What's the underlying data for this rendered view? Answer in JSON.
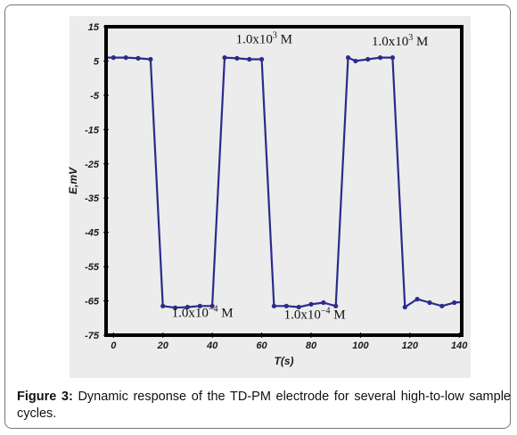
{
  "caption": {
    "label": "Figure 3:",
    "text": " Dynamic response of the TD-PM electrode for several high-to-low sample cycles."
  },
  "chart_data": {
    "type": "line",
    "xlabel": "T(s)",
    "ylabel": "E,mV",
    "xlim": [
      -3,
      141
    ],
    "ylim": [
      -75,
      15
    ],
    "xticks": [
      0,
      20,
      40,
      60,
      80,
      100,
      120,
      140
    ],
    "yticks": [
      15,
      5,
      -5,
      -15,
      -25,
      -35,
      -45,
      -55,
      -65,
      -75
    ],
    "grid": false,
    "line_color": "#2b2b8c",
    "series": [
      {
        "x": [
          -4,
          0,
          5,
          10,
          15,
          20,
          25,
          30,
          35,
          40,
          45,
          50,
          55,
          60,
          65,
          70,
          75,
          80,
          85,
          90,
          95,
          98,
          103,
          108,
          113,
          118,
          123,
          128,
          133,
          138,
          142
        ],
        "y": [
          6,
          6,
          6,
          5.8,
          5.5,
          -66.5,
          -67,
          -66.8,
          -66.5,
          -66.5,
          6,
          5.8,
          5.5,
          5.5,
          -66.5,
          -66.5,
          -66.8,
          -66,
          -65.5,
          -66.5,
          6,
          5,
          5.5,
          6,
          6,
          -66.8,
          -64.5,
          -65.5,
          -66.5,
          -65.5,
          -65.3
        ]
      }
    ],
    "annotations": [
      {
        "base": "1.0x10",
        "exp": "3",
        "unit": " M",
        "x": 61,
        "y": 10.2
      },
      {
        "base": "1.0x10",
        "exp": "3",
        "unit": " M",
        "x": 116,
        "y": 9.6
      },
      {
        "base": "1.0x10",
        "exp": "−4",
        "unit": " M",
        "x": 36,
        "y": -69.7
      },
      {
        "base": "1.0x10",
        "exp": "−4",
        "unit": " M",
        "x": 81.5,
        "y": -70.2
      }
    ]
  }
}
